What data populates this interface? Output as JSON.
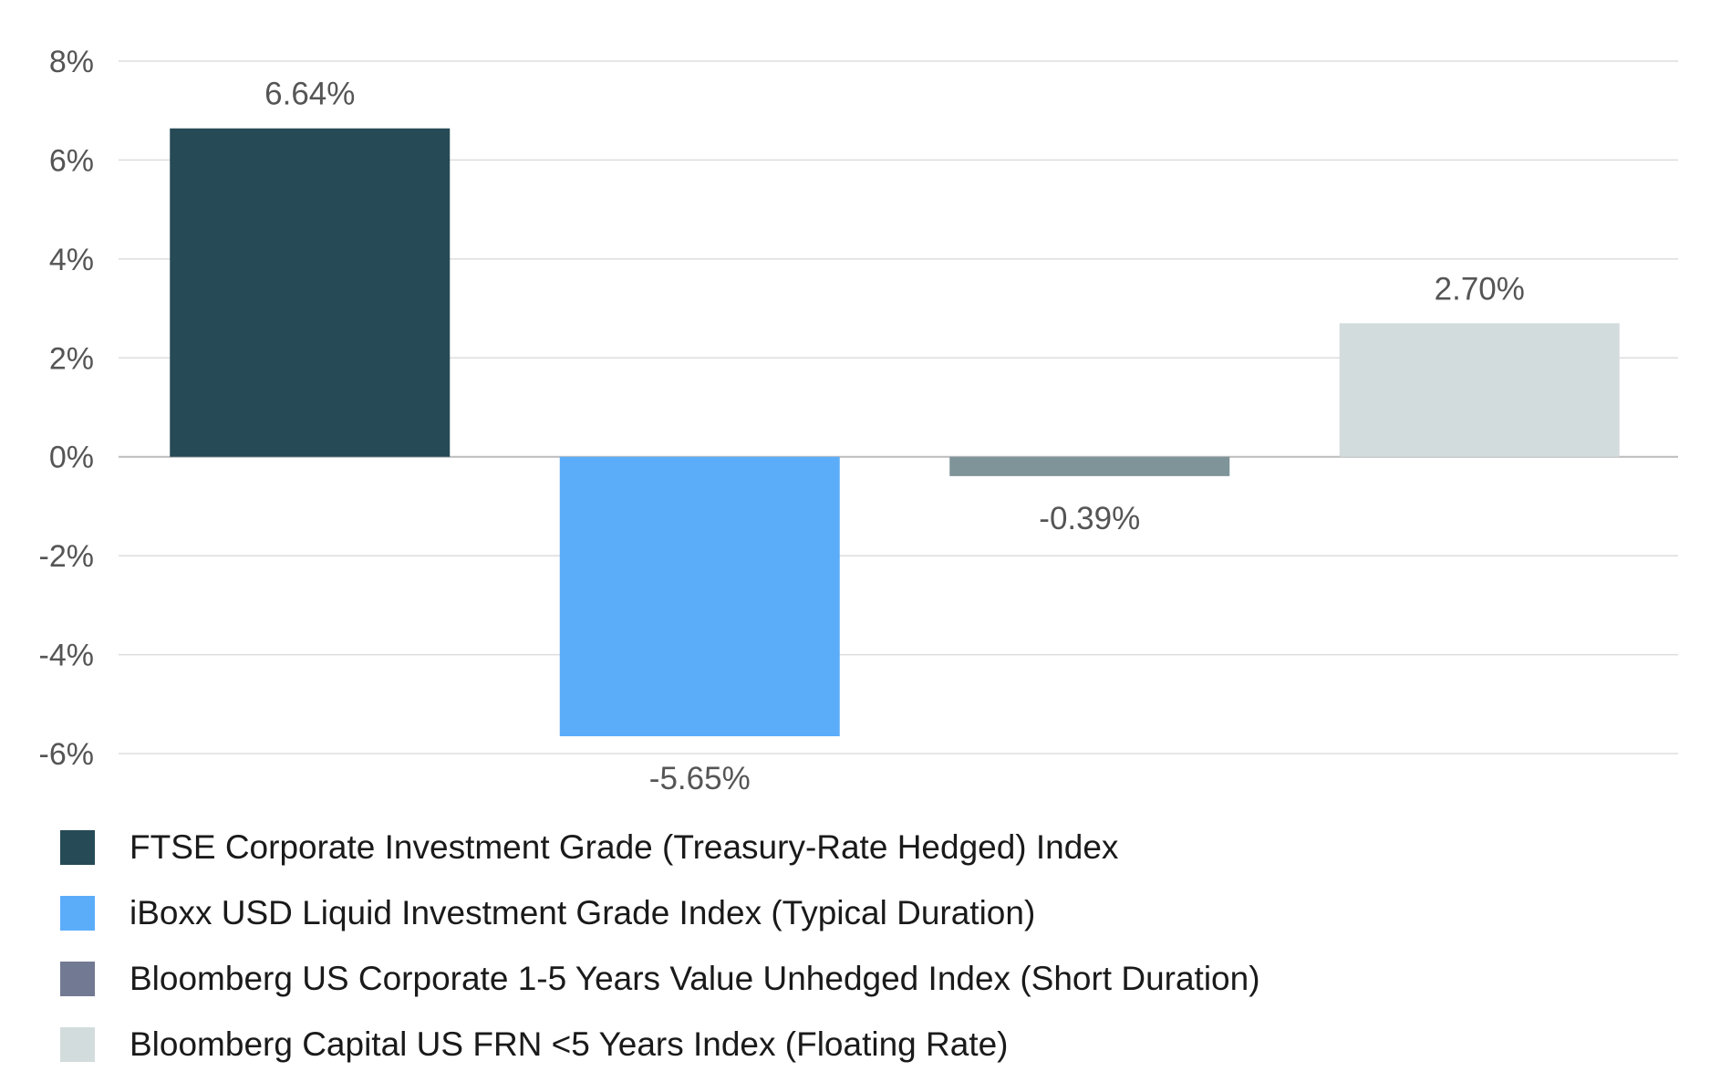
{
  "chart_data": {
    "type": "bar",
    "title": "",
    "xlabel": "",
    "ylabel": "",
    "ylim": [
      -6,
      8
    ],
    "yticks": [
      8,
      6,
      4,
      2,
      0,
      -2,
      -4,
      -6
    ],
    "ytick_labels": [
      "8%",
      "6%",
      "4%",
      "2%",
      "0%",
      "-2%",
      "-4%",
      "-6%"
    ],
    "grid": true,
    "legend_position": "bottom",
    "categories": [
      "FTSE Corporate Investment Grade (Treasury-Rate Hedged) Index",
      "iBoxx USD Liquid Investment Grade Index (Typical Duration)",
      "Bloomberg US Corporate 1-5 Years Value Unhedged Index (Short Duration)",
      "Bloomberg Capital US FRN <5 Years Index (Floating Rate)"
    ],
    "values": [
      6.64,
      -5.65,
      -0.39,
      2.7
    ],
    "data_labels": [
      "6.64%",
      "-5.65%",
      "-0.39%",
      "2.70%"
    ],
    "bar_colors": [
      "#264a56",
      "#5badfa",
      "#7e9499",
      "#d3dcdd"
    ],
    "legend_colors": [
      "#264a56",
      "#5badfa",
      "#727a93",
      "#d3dcdd"
    ],
    "grid_color": "#dddddd",
    "zero_line_color": "#bbbbbb"
  }
}
